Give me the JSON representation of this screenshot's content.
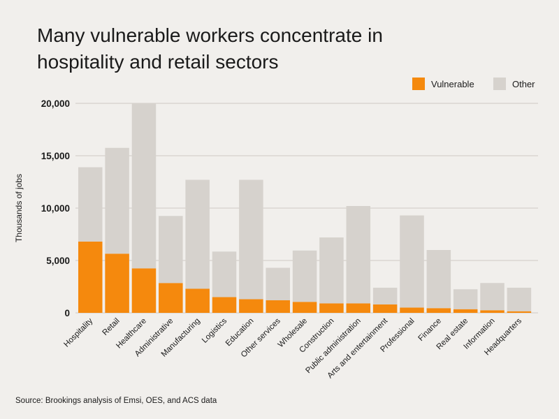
{
  "title_lines": [
    "Many vulnerable workers concentrate in",
    "hospitality and retail sectors"
  ],
  "source": "Source: Brookings analysis of Emsi, OES, and ACS data",
  "colors": {
    "vulnerable": "#f5890d",
    "other": "#d6d2cd",
    "grid": "#cfcac4",
    "background": "#f1efec"
  },
  "chart_data": {
    "type": "bar",
    "stacked": true,
    "title": "Many vulnerable workers concentrate in hospitality and retail sectors",
    "xlabel": "",
    "ylabel": "Thousands of jobs",
    "ylim": [
      0,
      20000
    ],
    "yticks": [
      0,
      5000,
      10000,
      15000,
      20000
    ],
    "ytick_labels": [
      "0",
      "5,000",
      "10,000",
      "15,000",
      "20,000"
    ],
    "legend_position": "top-right",
    "grid": true,
    "categories": [
      "Hospitality",
      "Retail",
      "Healthcare",
      "Administrative",
      "Manufacturing",
      "Logistics",
      "Education",
      "Other services",
      "Wholesale",
      "Construction",
      "Public administration",
      "Arts and entertainment",
      "Professional",
      "Finance",
      "Real estate",
      "Information",
      "Headquarters"
    ],
    "series": [
      {
        "name": "Vulnerable",
        "values": [
          6800,
          5650,
          4250,
          2850,
          2300,
          1500,
          1300,
          1200,
          1050,
          900,
          900,
          800,
          500,
          450,
          350,
          250,
          150
        ]
      },
      {
        "name": "Other",
        "values": [
          7100,
          10100,
          15750,
          6400,
          10400,
          4350,
          11400,
          3100,
          4900,
          6300,
          9300,
          1600,
          8800,
          5550,
          1900,
          2600,
          2250
        ]
      }
    ]
  }
}
